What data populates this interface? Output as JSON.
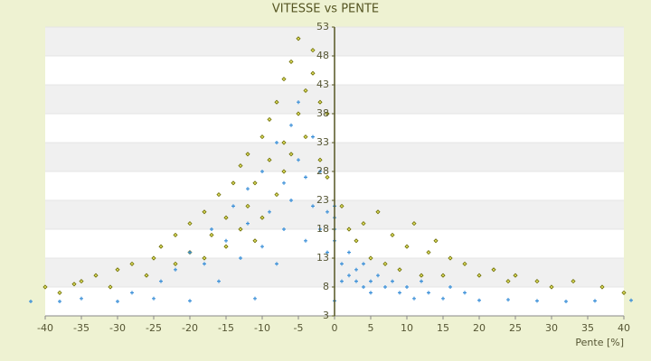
{
  "chart_data": {
    "type": "scatter",
    "title": "VITESSE vs PENTE",
    "x_label": "Pente [%]",
    "xlim": [
      -40,
      40
    ],
    "xticks": [
      -40,
      -35,
      -30,
      -25,
      -20,
      -15,
      -10,
      -5,
      0,
      5,
      10,
      15,
      20,
      25,
      30,
      35,
      40
    ],
    "ylim": [
      3,
      53
    ],
    "yticks": [
      3,
      8,
      13,
      18,
      23,
      28,
      33,
      38,
      43,
      48,
      53
    ],
    "grid": true,
    "series": [
      {
        "color": "#6b6b00",
        "x": [
          -40,
          -38,
          -36,
          -35,
          -33,
          -31,
          -30,
          -28,
          -26,
          -25,
          -24,
          -22,
          -22,
          -20,
          -20,
          -18,
          -18,
          -17,
          -16,
          -15,
          -15,
          -14,
          -13,
          -13,
          -12,
          -12,
          -11,
          -11,
          -10,
          -10,
          -9,
          -9,
          -8,
          -8,
          -7,
          -7,
          -7,
          -6,
          -6,
          -5,
          -5,
          -4,
          -4,
          -3,
          -3,
          -2,
          -2,
          -1,
          -1,
          1,
          2,
          3,
          4,
          5,
          6,
          7,
          8,
          9,
          10,
          11,
          12,
          13,
          14,
          15,
          16,
          18,
          20,
          22,
          24,
          25,
          28,
          30,
          33,
          37,
          40
        ],
        "values": [
          8,
          7,
          8.5,
          9,
          10,
          8,
          11,
          12,
          10,
          13,
          15,
          12,
          17,
          14,
          19,
          13,
          21,
          17,
          24,
          15,
          20,
          26,
          18,
          29,
          22,
          31,
          16,
          26,
          34,
          20,
          30,
          37,
          24,
          40,
          28,
          33,
          44,
          31,
          47,
          38,
          51,
          42,
          34,
          45,
          49,
          40,
          30,
          38,
          27,
          22,
          18,
          16,
          19,
          13,
          21,
          12,
          17,
          11,
          15,
          19,
          10,
          14,
          16,
          10,
          13,
          12,
          10,
          11,
          9,
          10,
          9,
          8,
          9,
          8,
          7
        ]
      },
      {
        "color": "#3a8fd8",
        "x": [
          -42,
          -38,
          -35,
          -30,
          -28,
          -25,
          -24,
          -22,
          -20,
          -20,
          -18,
          -17,
          -16,
          -15,
          -14,
          -13,
          -12,
          -12,
          -11,
          -10,
          -10,
          -9,
          -8,
          -8,
          -7,
          -7,
          -6,
          -6,
          -5,
          -5,
          -4,
          -4,
          -3,
          -3,
          -2,
          -2,
          -1,
          -1,
          0,
          0,
          0,
          0,
          0,
          1,
          1,
          2,
          2,
          3,
          3,
          4,
          4,
          5,
          5,
          6,
          7,
          8,
          9,
          10,
          11,
          12,
          13,
          15,
          16,
          18,
          20,
          24,
          28,
          32,
          36,
          41
        ],
        "values": [
          5.5,
          5.5,
          6,
          5.5,
          7,
          6,
          9,
          11,
          5.6,
          14,
          12,
          18,
          9,
          16,
          22,
          13,
          19,
          25,
          6,
          15,
          28,
          21,
          33,
          12,
          26,
          18,
          36,
          23,
          30,
          40,
          16,
          27,
          34,
          22,
          18,
          28,
          21,
          14,
          18,
          20,
          22,
          16,
          5.6,
          12,
          9,
          10,
          14,
          9,
          11,
          8,
          12,
          9,
          7,
          10,
          8,
          9,
          7,
          8,
          6,
          9,
          7,
          6,
          8,
          7,
          5.7,
          5.8,
          5.6,
          5.5,
          5.6,
          5.7
        ]
      }
    ]
  }
}
